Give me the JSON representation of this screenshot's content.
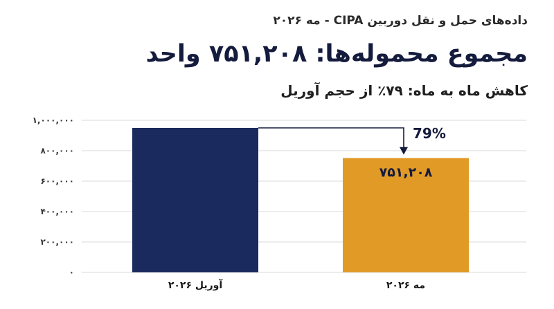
{
  "header": {
    "eyebrow": "داده‌های حمل و نقل دوربین CIPA - مه ۲۰۲۶",
    "title": "مجموع محموله‌ها: ۷۵۱,۲۰۸ واحد",
    "subtitle": "کاهش ماه به ماه: ۷۹٪ از حجم آوریل"
  },
  "colors": {
    "april_bar": "#1b2a5e",
    "may_bar": "#e29a27",
    "grid": "#d9d9d9",
    "arrow": "#141b3d"
  },
  "chart_data": {
    "type": "bar",
    "categories": [
      "آوریل ۲۰۲۶",
      "مه ۲۰۲۶"
    ],
    "values": [
      950000,
      751208
    ],
    "ylim": [
      0,
      1000000
    ],
    "yticks": [
      0,
      200000,
      400000,
      600000,
      800000,
      1000000
    ],
    "ytick_labels": [
      "۰",
      "۲۰۰,۰۰۰",
      "۴۰۰,۰۰۰",
      "۶۰۰,۰۰۰",
      "۸۰۰,۰۰۰",
      "۱,۰۰۰,۰۰۰"
    ],
    "data_labels": [
      "",
      "۷۵۱,۲۰۸"
    ],
    "annotation": "79%",
    "grid": true,
    "legend": "none"
  }
}
